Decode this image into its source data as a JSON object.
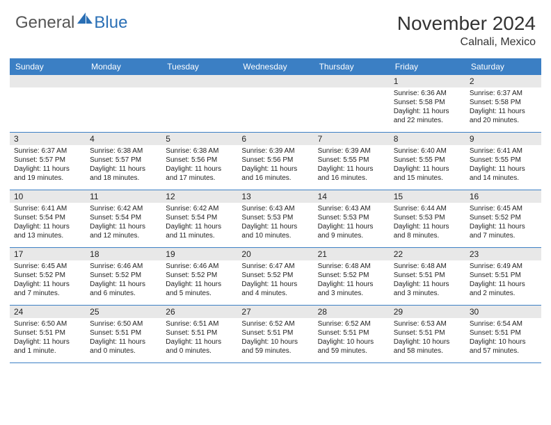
{
  "logo": {
    "general": "General",
    "blue": "Blue"
  },
  "title": {
    "month": "November 2024",
    "location": "Calnali, Mexico"
  },
  "colors": {
    "header_bg": "#3b7fc4",
    "header_text": "#ffffff",
    "daynum_bg": "#e8e8e8",
    "border": "#3b7fc4",
    "logo_gray": "#555555",
    "logo_blue": "#2a6fb5"
  },
  "day_headers": [
    "Sunday",
    "Monday",
    "Tuesday",
    "Wednesday",
    "Thursday",
    "Friday",
    "Saturday"
  ],
  "weeks": [
    [
      {
        "num": "",
        "lines": []
      },
      {
        "num": "",
        "lines": []
      },
      {
        "num": "",
        "lines": []
      },
      {
        "num": "",
        "lines": []
      },
      {
        "num": "",
        "lines": []
      },
      {
        "num": "1",
        "lines": [
          "Sunrise: 6:36 AM",
          "Sunset: 5:58 PM",
          "Daylight: 11 hours and 22 minutes."
        ]
      },
      {
        "num": "2",
        "lines": [
          "Sunrise: 6:37 AM",
          "Sunset: 5:58 PM",
          "Daylight: 11 hours and 20 minutes."
        ]
      }
    ],
    [
      {
        "num": "3",
        "lines": [
          "Sunrise: 6:37 AM",
          "Sunset: 5:57 PM",
          "Daylight: 11 hours and 19 minutes."
        ]
      },
      {
        "num": "4",
        "lines": [
          "Sunrise: 6:38 AM",
          "Sunset: 5:57 PM",
          "Daylight: 11 hours and 18 minutes."
        ]
      },
      {
        "num": "5",
        "lines": [
          "Sunrise: 6:38 AM",
          "Sunset: 5:56 PM",
          "Daylight: 11 hours and 17 minutes."
        ]
      },
      {
        "num": "6",
        "lines": [
          "Sunrise: 6:39 AM",
          "Sunset: 5:56 PM",
          "Daylight: 11 hours and 16 minutes."
        ]
      },
      {
        "num": "7",
        "lines": [
          "Sunrise: 6:39 AM",
          "Sunset: 5:55 PM",
          "Daylight: 11 hours and 16 minutes."
        ]
      },
      {
        "num": "8",
        "lines": [
          "Sunrise: 6:40 AM",
          "Sunset: 5:55 PM",
          "Daylight: 11 hours and 15 minutes."
        ]
      },
      {
        "num": "9",
        "lines": [
          "Sunrise: 6:41 AM",
          "Sunset: 5:55 PM",
          "Daylight: 11 hours and 14 minutes."
        ]
      }
    ],
    [
      {
        "num": "10",
        "lines": [
          "Sunrise: 6:41 AM",
          "Sunset: 5:54 PM",
          "Daylight: 11 hours and 13 minutes."
        ]
      },
      {
        "num": "11",
        "lines": [
          "Sunrise: 6:42 AM",
          "Sunset: 5:54 PM",
          "Daylight: 11 hours and 12 minutes."
        ]
      },
      {
        "num": "12",
        "lines": [
          "Sunrise: 6:42 AM",
          "Sunset: 5:54 PM",
          "Daylight: 11 hours and 11 minutes."
        ]
      },
      {
        "num": "13",
        "lines": [
          "Sunrise: 6:43 AM",
          "Sunset: 5:53 PM",
          "Daylight: 11 hours and 10 minutes."
        ]
      },
      {
        "num": "14",
        "lines": [
          "Sunrise: 6:43 AM",
          "Sunset: 5:53 PM",
          "Daylight: 11 hours and 9 minutes."
        ]
      },
      {
        "num": "15",
        "lines": [
          "Sunrise: 6:44 AM",
          "Sunset: 5:53 PM",
          "Daylight: 11 hours and 8 minutes."
        ]
      },
      {
        "num": "16",
        "lines": [
          "Sunrise: 6:45 AM",
          "Sunset: 5:52 PM",
          "Daylight: 11 hours and 7 minutes."
        ]
      }
    ],
    [
      {
        "num": "17",
        "lines": [
          "Sunrise: 6:45 AM",
          "Sunset: 5:52 PM",
          "Daylight: 11 hours and 7 minutes."
        ]
      },
      {
        "num": "18",
        "lines": [
          "Sunrise: 6:46 AM",
          "Sunset: 5:52 PM",
          "Daylight: 11 hours and 6 minutes."
        ]
      },
      {
        "num": "19",
        "lines": [
          "Sunrise: 6:46 AM",
          "Sunset: 5:52 PM",
          "Daylight: 11 hours and 5 minutes."
        ]
      },
      {
        "num": "20",
        "lines": [
          "Sunrise: 6:47 AM",
          "Sunset: 5:52 PM",
          "Daylight: 11 hours and 4 minutes."
        ]
      },
      {
        "num": "21",
        "lines": [
          "Sunrise: 6:48 AM",
          "Sunset: 5:52 PM",
          "Daylight: 11 hours and 3 minutes."
        ]
      },
      {
        "num": "22",
        "lines": [
          "Sunrise: 6:48 AM",
          "Sunset: 5:51 PM",
          "Daylight: 11 hours and 3 minutes."
        ]
      },
      {
        "num": "23",
        "lines": [
          "Sunrise: 6:49 AM",
          "Sunset: 5:51 PM",
          "Daylight: 11 hours and 2 minutes."
        ]
      }
    ],
    [
      {
        "num": "24",
        "lines": [
          "Sunrise: 6:50 AM",
          "Sunset: 5:51 PM",
          "Daylight: 11 hours and 1 minute."
        ]
      },
      {
        "num": "25",
        "lines": [
          "Sunrise: 6:50 AM",
          "Sunset: 5:51 PM",
          "Daylight: 11 hours and 0 minutes."
        ]
      },
      {
        "num": "26",
        "lines": [
          "Sunrise: 6:51 AM",
          "Sunset: 5:51 PM",
          "Daylight: 11 hours and 0 minutes."
        ]
      },
      {
        "num": "27",
        "lines": [
          "Sunrise: 6:52 AM",
          "Sunset: 5:51 PM",
          "Daylight: 10 hours and 59 minutes."
        ]
      },
      {
        "num": "28",
        "lines": [
          "Sunrise: 6:52 AM",
          "Sunset: 5:51 PM",
          "Daylight: 10 hours and 59 minutes."
        ]
      },
      {
        "num": "29",
        "lines": [
          "Sunrise: 6:53 AM",
          "Sunset: 5:51 PM",
          "Daylight: 10 hours and 58 minutes."
        ]
      },
      {
        "num": "30",
        "lines": [
          "Sunrise: 6:54 AM",
          "Sunset: 5:51 PM",
          "Daylight: 10 hours and 57 minutes."
        ]
      }
    ]
  ]
}
